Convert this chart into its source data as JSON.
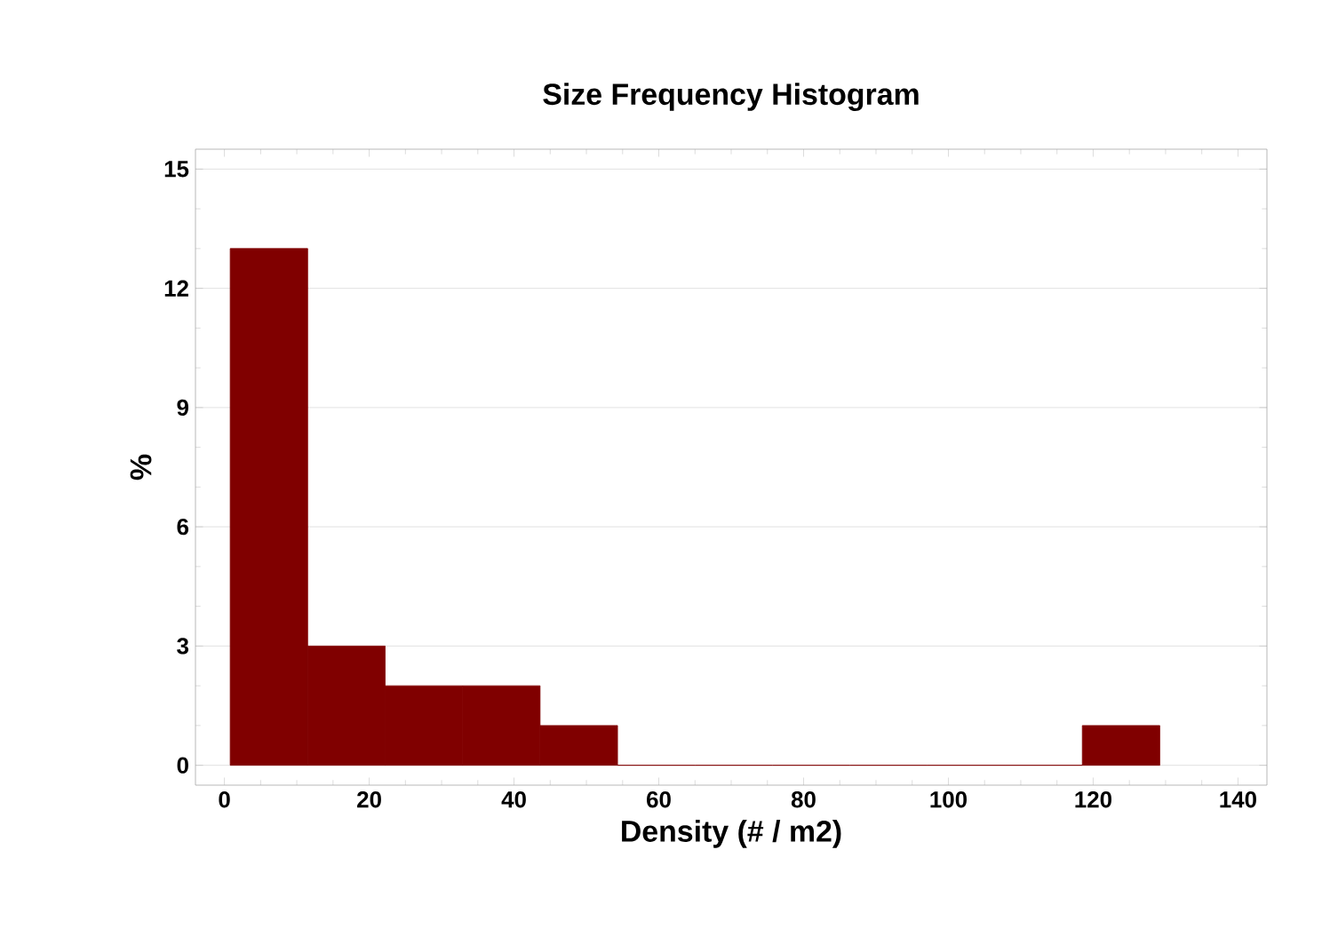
{
  "chart_data": {
    "type": "histogram",
    "title": "Size Frequency Histogram",
    "xlabel": "Density (# / m2)",
    "ylabel": "%",
    "bins": [
      0.8,
      11.5,
      22.2,
      32.9,
      43.6,
      54.3,
      65,
      75.7,
      86.4,
      97.1,
      107.8,
      118.5,
      129.2
    ],
    "values": [
      13,
      3,
      2,
      2,
      1,
      0,
      0,
      0,
      0,
      0,
      0,
      1
    ],
    "color": "#800000",
    "xlim": [
      -4,
      144
    ],
    "ylim": [
      -0.5,
      15.5
    ],
    "xticks": [
      0,
      20,
      40,
      60,
      80,
      100,
      120,
      140
    ],
    "yticks": [
      0,
      3,
      6,
      9,
      12,
      15
    ],
    "grid": "y"
  }
}
